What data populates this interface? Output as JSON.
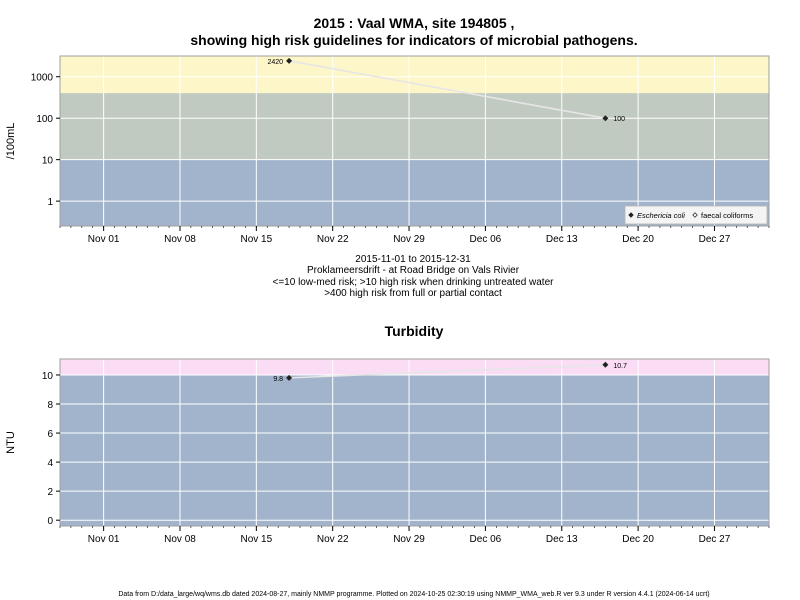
{
  "title_line1": "2015 : Vaal WMA, site 194805 ,",
  "title_line2": "showing high risk guidelines for indicators of microbial pathogens.",
  "subtitle_lines": [
    "2015-11-01 to 2015-12-31",
    "Proklameersdrift - at Road Bridge on Vals Rivier",
    "<=10 low-med risk; >10 high risk when drinking untreated water",
    ">400 high risk from full or partial contact"
  ],
  "footer": "Data from D:/data_large/wq/wms.db dated 2024-08-27, mainly NMMP programme. Plotted on 2024-10-25 02:30:19 using NMMP_WMA_web.R ver 9.3 under R version 4.4.1 (2024-06-14 ucrt)",
  "colors": {
    "panel_bg": "#a2b4cb",
    "band_mid": "#c1cac0",
    "band_high_yellow": "#fdf6c9",
    "band_high_pink": "#fadcf5",
    "series_line": "#e6e6e6",
    "point": "#222222",
    "grid": "#ffffff"
  },
  "chart_data": [
    {
      "type": "line",
      "title": "",
      "xlabel": "",
      "ylabel": "/100mL",
      "y_scale": "log10",
      "x_range": [
        "2015-10-28",
        "2016-01-01"
      ],
      "y_range_log10": [
        -0.6,
        3.5
      ],
      "x_ticks": [
        {
          "date": "2015-11-01",
          "label": "Nov 01"
        },
        {
          "date": "2015-11-08",
          "label": "Nov 08"
        },
        {
          "date": "2015-11-15",
          "label": "Nov 15"
        },
        {
          "date": "2015-11-22",
          "label": "Nov 22"
        },
        {
          "date": "2015-11-29",
          "label": "Nov 29"
        },
        {
          "date": "2015-12-06",
          "label": "Dec 06"
        },
        {
          "date": "2015-12-13",
          "label": "Dec 13"
        },
        {
          "date": "2015-12-20",
          "label": "Dec 20"
        },
        {
          "date": "2015-12-27",
          "label": "Dec 27"
        }
      ],
      "y_ticks": [
        {
          "value": 1,
          "label": "1"
        },
        {
          "value": 10,
          "label": "10"
        },
        {
          "value": 100,
          "label": "100"
        },
        {
          "value": 1000,
          "label": "1000"
        }
      ],
      "bands": [
        {
          "from": 10,
          "to": 400,
          "color_key": "band_mid"
        },
        {
          "from": 400,
          "to": 3162,
          "color_key": "band_high_yellow"
        }
      ],
      "series": [
        {
          "name": "Eschericia coli",
          "points": [
            {
              "x": "2015-11-18",
              "y": 2420,
              "label": "2420",
              "label_side": "left"
            },
            {
              "x": "2015-12-17",
              "y": 100,
              "label": "100",
              "label_side": "right"
            }
          ]
        }
      ],
      "legend": {
        "position": "bottom-right",
        "entries": [
          {
            "label": "Eschericia coli",
            "marker": "filled-diamond",
            "italic": true
          },
          {
            "label": "faecal coliforms",
            "marker": "open-diamond",
            "italic": false
          }
        ]
      }
    },
    {
      "type": "line",
      "title": "Turbidity",
      "xlabel": "",
      "ylabel": "NTU",
      "y_scale": "linear",
      "x_range": [
        "2015-10-28",
        "2016-01-01"
      ],
      "y_range": [
        -0.4,
        11.1
      ],
      "x_ticks": [
        {
          "date": "2015-11-01",
          "label": "Nov 01"
        },
        {
          "date": "2015-11-08",
          "label": "Nov 08"
        },
        {
          "date": "2015-11-15",
          "label": "Nov 15"
        },
        {
          "date": "2015-11-22",
          "label": "Nov 22"
        },
        {
          "date": "2015-11-29",
          "label": "Nov 29"
        },
        {
          "date": "2015-12-06",
          "label": "Dec 06"
        },
        {
          "date": "2015-12-13",
          "label": "Dec 13"
        },
        {
          "date": "2015-12-20",
          "label": "Dec 20"
        },
        {
          "date": "2015-12-27",
          "label": "Dec 27"
        }
      ],
      "y_ticks": [
        {
          "value": 0,
          "label": "0"
        },
        {
          "value": 2,
          "label": "2"
        },
        {
          "value": 4,
          "label": "4"
        },
        {
          "value": 6,
          "label": "6"
        },
        {
          "value": 8,
          "label": "8"
        },
        {
          "value": 10,
          "label": "10"
        }
      ],
      "bands": [
        {
          "from": 10,
          "to": 11.1,
          "color_key": "band_high_pink"
        }
      ],
      "series": [
        {
          "points": [
            {
              "x": "2015-11-18",
              "y": 9.8,
              "label": "9.8",
              "label_side": "left"
            },
            {
              "x": "2015-12-17",
              "y": 10.7,
              "label": "10.7",
              "label_side": "right"
            }
          ]
        }
      ]
    }
  ]
}
